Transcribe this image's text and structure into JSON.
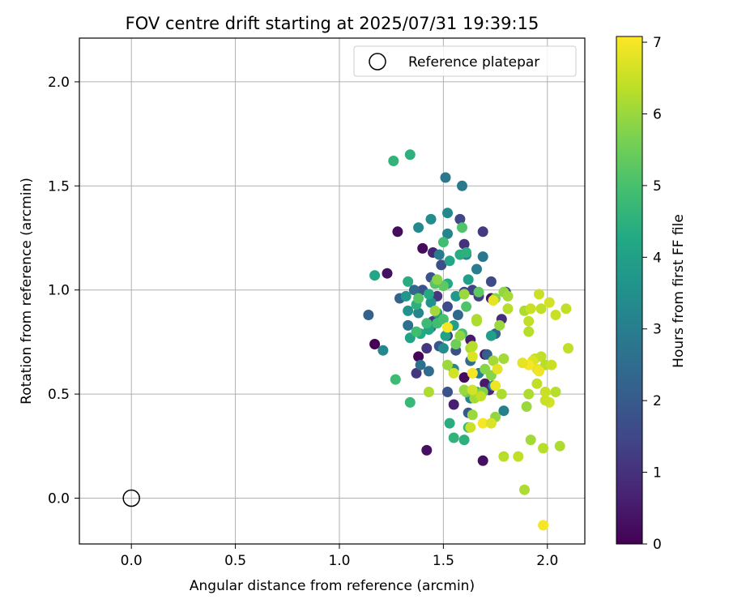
{
  "chart_data": {
    "type": "scatter",
    "title": "FOV centre drift starting at 2025/07/31 19:39:15",
    "xlabel": "Angular distance from reference (arcmin)",
    "ylabel": "Rotation from reference (arcmin)",
    "xlim": [
      -0.25,
      2.18
    ],
    "ylim": [
      -0.22,
      2.21
    ],
    "x_ticks": [
      "0.0",
      "0.5",
      "1.0",
      "1.5",
      "2.0"
    ],
    "y_ticks": [
      "0.0",
      "0.5",
      "1.0",
      "1.5",
      "2.0"
    ],
    "grid": true,
    "legend": {
      "position": "top-right",
      "entries": [
        "Reference platepar"
      ]
    },
    "reference_point": {
      "name": "Reference platepar",
      "x": 0.0,
      "y": 0.0
    },
    "colorbar": {
      "label": "Hours from first FF file",
      "range": [
        0,
        7.08
      ],
      "ticks": [
        "0",
        "1",
        "2",
        "3",
        "4",
        "5",
        "6",
        "7"
      ],
      "colormap": "viridis"
    },
    "points": [
      [
        1.17,
        0.74,
        0.0
      ],
      [
        1.23,
        1.08,
        0.3
      ],
      [
        1.28,
        1.28,
        0.2
      ],
      [
        1.38,
        0.68,
        0.1
      ],
      [
        1.42,
        0.23,
        0.3
      ],
      [
        1.4,
        1.2,
        0.2
      ],
      [
        1.55,
        0.45,
        0.6
      ],
      [
        1.69,
        0.18,
        0.3
      ],
      [
        1.6,
        0.58,
        0.2
      ],
      [
        1.7,
        0.55,
        0.5
      ],
      [
        1.72,
        0.52,
        0.8
      ],
      [
        1.45,
        1.18,
        0.7
      ],
      [
        1.63,
        0.76,
        0.5
      ],
      [
        1.7,
        0.69,
        0.4
      ],
      [
        1.73,
        0.96,
        0.3
      ],
      [
        1.78,
        0.86,
        0.9
      ],
      [
        1.6,
        1.22,
        1.0
      ],
      [
        1.69,
        1.28,
        1.2
      ],
      [
        1.47,
        0.97,
        1.1
      ],
      [
        1.37,
        0.6,
        1.1
      ],
      [
        1.45,
        0.85,
        1.2
      ],
      [
        1.52,
        0.78,
        1.3
      ],
      [
        1.42,
        0.72,
        1.1
      ],
      [
        1.6,
        0.99,
        1.5
      ],
      [
        1.64,
        1.0,
        1.4
      ],
      [
        1.67,
        0.97,
        1.3
      ],
      [
        1.73,
        1.04,
        1.6
      ],
      [
        1.8,
        0.99,
        1.5
      ],
      [
        1.56,
        0.71,
        1.7
      ],
      [
        1.52,
        0.92,
        1.6
      ],
      [
        1.4,
        1.0,
        1.8
      ],
      [
        1.44,
        1.06,
        1.8
      ],
      [
        1.49,
        1.12,
        1.7
      ],
      [
        1.58,
        1.34,
        1.5
      ],
      [
        1.48,
        0.73,
        1.9
      ],
      [
        1.52,
        0.51,
        1.8
      ],
      [
        1.62,
        0.41,
        2.0
      ],
      [
        1.71,
        0.69,
        2.1
      ],
      [
        1.75,
        0.79,
        2.3
      ],
      [
        1.63,
        0.66,
        2.5
      ],
      [
        1.57,
        0.88,
        2.4
      ],
      [
        1.14,
        0.88,
        2.2
      ],
      [
        1.29,
        0.96,
        2.3
      ],
      [
        1.33,
        0.83,
        2.6
      ],
      [
        1.36,
        1.0,
        2.4
      ],
      [
        1.39,
        0.64,
        2.6
      ],
      [
        1.43,
        0.61,
        2.5
      ],
      [
        1.44,
        0.82,
        2.6
      ],
      [
        1.48,
        1.17,
        2.9
      ],
      [
        1.51,
        1.54,
        2.8
      ],
      [
        1.59,
        1.5,
        2.9
      ],
      [
        1.66,
        1.1,
        3.0
      ],
      [
        1.61,
        1.17,
        3.1
      ],
      [
        1.69,
        1.16,
        2.8
      ],
      [
        1.79,
        0.42,
        3.1
      ],
      [
        1.74,
        0.54,
        3.2
      ],
      [
        1.67,
        0.6,
        3.0
      ],
      [
        1.63,
        0.48,
        3.2
      ],
      [
        1.55,
        0.62,
        3.3
      ],
      [
        1.5,
        0.72,
        3.4
      ],
      [
        1.44,
        0.94,
        3.5
      ],
      [
        1.38,
        0.89,
        3.2
      ],
      [
        1.33,
        0.9,
        3.6
      ],
      [
        1.21,
        0.71,
        3.3
      ],
      [
        1.32,
        0.97,
        3.7
      ],
      [
        1.38,
        1.3,
        3.3
      ],
      [
        1.44,
        1.34,
        3.4
      ],
      [
        1.52,
        1.37,
        3.3
      ],
      [
        1.56,
        0.97,
        3.8
      ],
      [
        1.52,
        1.27,
        3.2
      ],
      [
        1.55,
        0.83,
        4.0
      ],
      [
        1.51,
        0.78,
        4.1
      ],
      [
        1.47,
        0.89,
        4.0
      ],
      [
        1.43,
        0.81,
        4.2
      ],
      [
        1.39,
        0.79,
        4.3
      ],
      [
        1.34,
        0.77,
        4.1
      ],
      [
        1.17,
        1.07,
        4.2
      ],
      [
        1.33,
        1.04,
        4.4
      ],
      [
        1.37,
        0.93,
        4.5
      ],
      [
        1.43,
        0.98,
        4.3
      ],
      [
        1.53,
        0.36,
        4.4
      ],
      [
        1.55,
        0.29,
        4.6
      ],
      [
        1.6,
        0.28,
        4.5
      ],
      [
        1.62,
        0.34,
        4.7
      ],
      [
        1.66,
        0.51,
        4.4
      ],
      [
        1.73,
        0.78,
        4.0
      ],
      [
        1.62,
        1.05,
        4.0
      ],
      [
        1.53,
        1.14,
        4.2
      ],
      [
        1.52,
        1.03,
        4.3
      ],
      [
        1.58,
        1.17,
        4.4
      ],
      [
        1.61,
        1.18,
        4.5
      ],
      [
        1.26,
        1.62,
        4.6
      ],
      [
        1.34,
        1.65,
        4.5
      ],
      [
        1.34,
        0.46,
        4.7
      ],
      [
        1.27,
        0.57,
        4.8
      ],
      [
        1.5,
        1.23,
        4.9
      ],
      [
        1.42,
        0.84,
        4.8
      ],
      [
        1.47,
        0.84,
        4.9
      ],
      [
        1.5,
        0.86,
        5.0
      ],
      [
        1.59,
        0.79,
        5.0
      ],
      [
        1.61,
        0.92,
        5.1
      ],
      [
        1.67,
        0.99,
        5.3
      ],
      [
        1.46,
        1.03,
        5.2
      ],
      [
        1.5,
        1.02,
        5.3
      ],
      [
        1.38,
        0.96,
        5.2
      ],
      [
        1.37,
        0.8,
        4.9
      ],
      [
        1.59,
        1.3,
        5.1
      ],
      [
        1.56,
        0.74,
        5.5
      ],
      [
        1.61,
        0.51,
        5.6
      ],
      [
        1.69,
        0.51,
        5.7
      ],
      [
        1.73,
        0.59,
        5.8
      ],
      [
        1.75,
        0.39,
        5.9
      ],
      [
        1.64,
        0.4,
        6.0
      ],
      [
        1.6,
        0.52,
        6.0
      ],
      [
        1.65,
        0.48,
        6.1
      ],
      [
        1.75,
        0.96,
        5.8
      ],
      [
        1.79,
        0.99,
        5.9
      ],
      [
        1.81,
        0.97,
        6.1
      ],
      [
        1.77,
        0.83,
        6.0
      ],
      [
        1.66,
        0.85,
        6.2
      ],
      [
        1.58,
        0.78,
        5.9
      ],
      [
        1.52,
        0.64,
        6.0
      ],
      [
        1.63,
        0.72,
        6.2
      ],
      [
        1.64,
        0.73,
        6.3
      ],
      [
        1.74,
        0.66,
        6.1
      ],
      [
        1.78,
        0.5,
        6.2
      ],
      [
        1.79,
        0.67,
        6.1
      ],
      [
        1.81,
        0.91,
        6.3
      ],
      [
        1.89,
        0.9,
        6.2
      ],
      [
        1.91,
        0.85,
        6.4
      ],
      [
        1.91,
        0.8,
        6.3
      ],
      [
        1.92,
        0.91,
        6.5
      ],
      [
        1.96,
        0.98,
        6.5
      ],
      [
        1.97,
        0.91,
        6.4
      ],
      [
        2.01,
        0.94,
        6.6
      ],
      [
        2.04,
        0.88,
        6.5
      ],
      [
        2.09,
        0.91,
        6.4
      ],
      [
        1.94,
        0.67,
        6.5
      ],
      [
        1.97,
        0.68,
        6.4
      ],
      [
        1.99,
        0.64,
        6.3
      ],
      [
        2.02,
        0.64,
        6.5
      ],
      [
        1.95,
        0.55,
        6.4
      ],
      [
        1.99,
        0.51,
        6.5
      ],
      [
        2.01,
        0.46,
        6.6
      ],
      [
        1.99,
        0.47,
        6.5
      ],
      [
        2.04,
        0.51,
        6.3
      ],
      [
        1.91,
        0.5,
        6.2
      ],
      [
        1.9,
        0.44,
        6.0
      ],
      [
        1.92,
        0.28,
        6.1
      ],
      [
        1.79,
        0.2,
        6.3
      ],
      [
        1.86,
        0.2,
        6.4
      ],
      [
        1.89,
        0.04,
        6.2
      ],
      [
        1.98,
        0.24,
        6.3
      ],
      [
        2.06,
        0.25,
        6.2
      ],
      [
        2.1,
        0.72,
        6.4
      ],
      [
        1.93,
        0.66,
        6.7
      ],
      [
        1.95,
        0.62,
        6.8
      ],
      [
        1.96,
        0.61,
        6.9
      ],
      [
        1.91,
        0.64,
        7.0
      ],
      [
        1.88,
        0.65,
        6.8
      ],
      [
        1.98,
        -0.13,
        7.0
      ],
      [
        1.76,
        0.62,
        6.8
      ],
      [
        1.75,
        0.54,
        6.9
      ],
      [
        1.69,
        0.36,
        7.0
      ],
      [
        1.64,
        0.6,
        7.0
      ],
      [
        1.74,
        0.95,
        6.8
      ],
      [
        1.52,
        0.82,
        7.0
      ],
      [
        1.55,
        0.6,
        6.6
      ],
      [
        1.64,
        0.68,
        6.7
      ],
      [
        1.63,
        0.34,
        6.5
      ],
      [
        1.64,
        0.52,
        6.6
      ],
      [
        1.73,
        0.36,
        6.7
      ],
      [
        1.68,
        0.49,
        6.4
      ],
      [
        1.43,
        0.51,
        6.2
      ],
      [
        1.46,
        0.9,
        6.1
      ],
      [
        1.47,
        1.05,
        5.8
      ],
      [
        1.6,
        0.98,
        6.0
      ],
      [
        1.66,
        0.86,
        6.2
      ],
      [
        1.7,
        0.62,
        5.8
      ]
    ]
  }
}
